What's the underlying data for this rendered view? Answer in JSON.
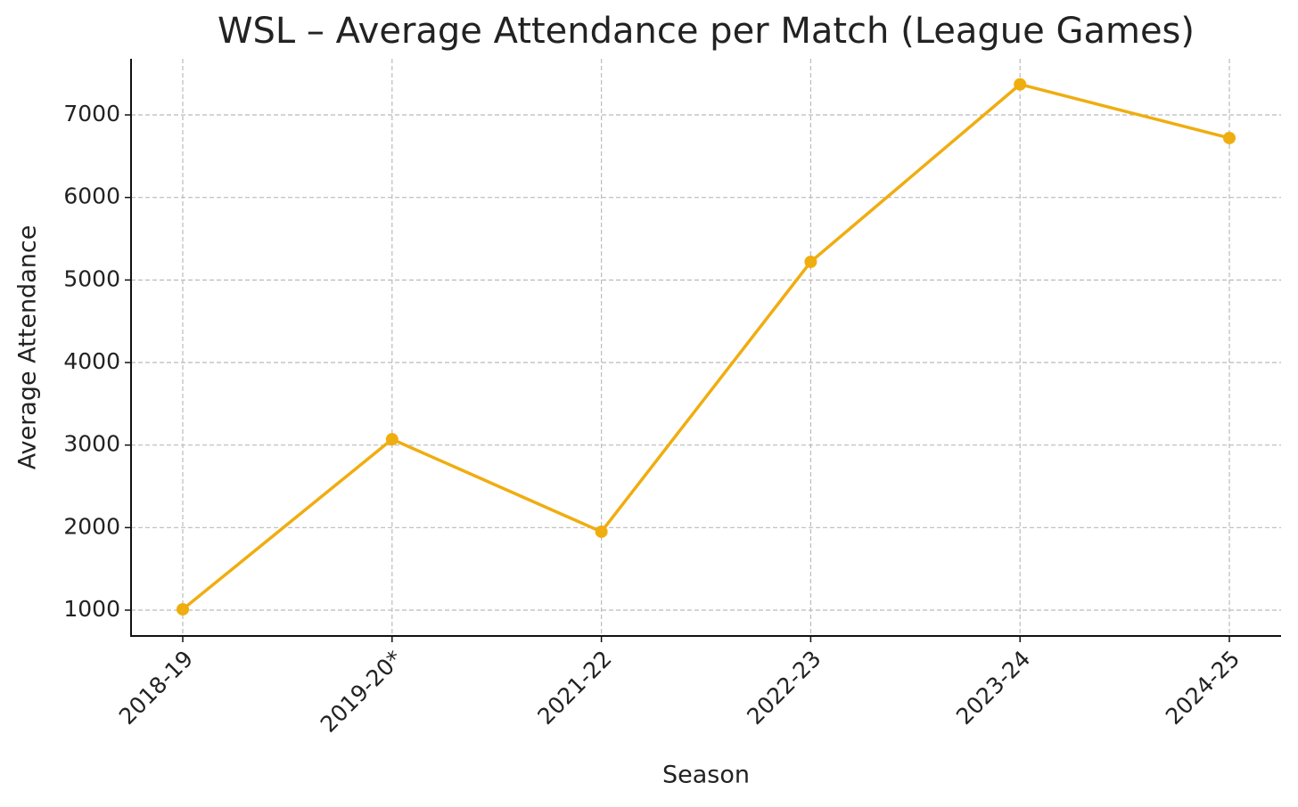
{
  "chart_data": {
    "type": "line",
    "title": "WSL – Average Attendance per Match (League Games)",
    "x_label": "Season",
    "y_label": "Average Attendance",
    "categories": [
      "2018-19",
      "2019-20*",
      "2021-22",
      "2022-23",
      "2023-24",
      "2024-25"
    ],
    "series": [
      {
        "name": "Average Attendance",
        "color": "#f0ad10",
        "values": [
          1010,
          3070,
          1950,
          5220,
          7370,
          6720
        ]
      }
    ],
    "ylim": [
      687,
      7680
    ],
    "yticks": [
      1000,
      2000,
      3000,
      4000,
      5000,
      6000,
      7000
    ],
    "grid": true,
    "legend": false
  }
}
